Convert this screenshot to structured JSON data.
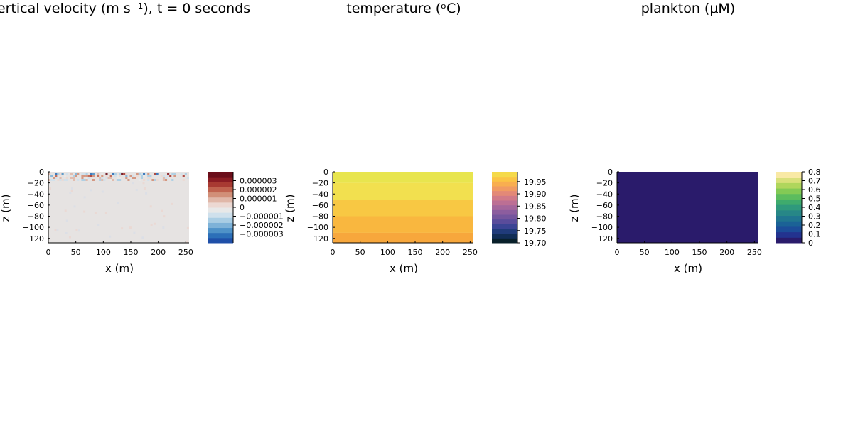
{
  "chart_data": [
    {
      "type": "heatmap",
      "title": "ertical velocity (m s⁻¹), t = 0 seconds",
      "xlabel": "x (m)",
      "ylabel": "z (m)",
      "xlim": [
        0,
        256
      ],
      "ylim": [
        -128,
        0
      ],
      "xticks": [
        "0",
        "50",
        "100",
        "150",
        "200",
        "250"
      ],
      "yticks": [
        "0",
        "−20",
        "−40",
        "−60",
        "−80",
        "−100",
        "−120"
      ],
      "colorbar": {
        "colormap": "balance (blue–white–red)",
        "range": [
          -4e-06,
          4e-06
        ],
        "ticks": [
          "0.000003",
          "0.000002",
          "0.000001",
          "0",
          "−0.000001",
          "−0.000002",
          "−0.000003"
        ],
        "colors": [
          "#1f4fa8",
          "#2c6fb8",
          "#4f92c8",
          "#7eb2d8",
          "#a9cde4",
          "#cfe0ec",
          "#e8e8e8",
          "#ecd8d2",
          "#e0b7a8",
          "#d18f78",
          "#c0634f",
          "#a83a32",
          "#8a1c23",
          "#6a0d1a"
        ]
      },
      "field_description": "near-zero noise, strongest fluctuations near surface (z > −10 m)"
    },
    {
      "type": "heatmap",
      "title": "temperature (ᵒC)",
      "xlabel": "x (m)",
      "ylabel": "z (m)",
      "xlim": [
        0,
        256
      ],
      "ylim": [
        -128,
        0
      ],
      "xticks": [
        "0",
        "50",
        "100",
        "150",
        "200",
        "250"
      ],
      "yticks": [
        "0",
        "−20",
        "−40",
        "−60",
        "−80",
        "−100",
        "−120"
      ],
      "bands": [
        {
          "z_top": 0,
          "z_bottom": -20,
          "color": "#e8e54e"
        },
        {
          "z_top": -20,
          "z_bottom": -50,
          "color": "#f2e04f"
        },
        {
          "z_top": -50,
          "z_bottom": -80,
          "color": "#f8c843"
        },
        {
          "z_top": -80,
          "z_bottom": -110,
          "color": "#f9b73f"
        },
        {
          "z_top": -110,
          "z_bottom": -128,
          "color": "#f7a73c"
        }
      ],
      "colorbar": {
        "colormap": "thermal",
        "range": [
          19.7,
          19.99
        ],
        "ticks": [
          "19.95",
          "19.90",
          "19.85",
          "19.80",
          "19.75",
          "19.70"
        ],
        "colors": [
          "#08202a",
          "#112d55",
          "#203b7a",
          "#3b4494",
          "#5a4c9b",
          "#74559d",
          "#8c5d9e",
          "#a4669b",
          "#bc6f94",
          "#d17a88",
          "#e38977",
          "#f09b63",
          "#f8ae50",
          "#fbc445",
          "#f5da4a"
        ]
      }
    },
    {
      "type": "heatmap",
      "title": "plankton (μM)",
      "xlabel": "x (m)",
      "ylabel": "z (m)",
      "xlim": [
        0,
        256
      ],
      "ylim": [
        -128,
        0
      ],
      "xticks": [
        "0",
        "50",
        "100",
        "150",
        "200",
        "250"
      ],
      "yticks": [
        "0",
        "−20",
        "−40",
        "−60",
        "−80",
        "−100",
        "−120"
      ],
      "fill_color": "#2a1b6b",
      "field_value": 0,
      "colorbar": {
        "colormap": "haline",
        "range": [
          0,
          0.8
        ],
        "ticks": [
          "0.8",
          "0.7",
          "0.6",
          "0.5",
          "0.4",
          "0.3",
          "0.2",
          "0.1",
          "0"
        ],
        "colors": [
          "#2a1b6b",
          "#23338f",
          "#1c4d99",
          "#1b6296",
          "#207590",
          "#278787",
          "#2f997c",
          "#3fab6d",
          "#5cbc5e",
          "#83ca55",
          "#b0d65c",
          "#d9e07a",
          "#f9e9a5"
        ]
      }
    }
  ]
}
